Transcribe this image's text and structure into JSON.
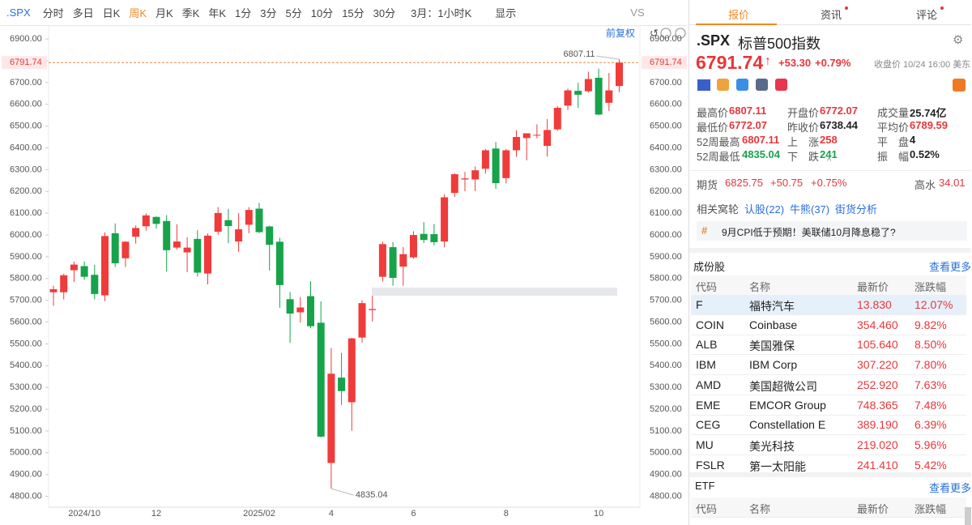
{
  "toolbar": {
    "symbol": ".SPX",
    "periods": [
      "分时",
      "多日",
      "日K",
      "周K",
      "月K",
      "季K",
      "年K",
      "1分",
      "3分",
      "5分",
      "10分",
      "15分",
      "30分"
    ],
    "active_period": 3,
    "range": "3月：1小时K",
    "display": "显示",
    "vs": "VS"
  },
  "chart_data": {
    "type": "candlestick",
    "adjust_label": "前复权",
    "up_color": "#f03b3b",
    "down_color": "#17a34a",
    "last_color": "#f0883b",
    "categories": [
      null,
      null,
      null,
      "2024/10",
      null,
      null,
      null,
      null,
      null,
      null,
      "12",
      null,
      null,
      null,
      null,
      null,
      null,
      null,
      null,
      null,
      "2025/02",
      null,
      null,
      null,
      null,
      null,
      null,
      "4",
      null,
      null,
      null,
      null,
      null,
      null,
      null,
      "6",
      null,
      null,
      null,
      null,
      null,
      null,
      null,
      null,
      "8",
      null,
      null,
      null,
      null,
      null,
      null,
      null,
      null,
      "10",
      null,
      null
    ],
    "open": [
      5737,
      5737,
      5838,
      5857,
      5817,
      5723,
      6008,
      5893,
      5992,
      6040,
      6083,
      6064,
      5942,
      5920,
      5982,
      5823,
      6015,
      6068,
      5970,
      6047,
      6121,
      6039,
      5969,
      5705,
      5645,
      5719,
      5597,
      4953,
      5345,
      5232,
      5529,
      5655,
      5808,
      5944,
      5855,
      5897,
      6005,
      6004,
      5970,
      6193,
      6255,
      6255,
      6304,
      6397,
      6261,
      6389,
      6445,
      6457,
      6409,
      6485,
      6594,
      6662,
      6660,
      6722,
      6607,
      6684
    ],
    "high": [
      5767,
      5822,
      5878,
      5878,
      5863,
      6012,
      6053,
      5972,
      6044,
      6099,
      6085,
      6091,
      6049,
      5990,
      6022,
      6007,
      6128,
      6120,
      6101,
      6128,
      6147,
      6043,
      5987,
      5738,
      5715,
      5787,
      5695,
      5481,
      5459,
      5528,
      5700,
      5721,
      5969,
      5968,
      5944,
      6017,
      6059,
      6050,
      6187,
      6284,
      6290,
      6315,
      6395,
      6427,
      6395,
      6481,
      6467,
      6508,
      6532,
      6592,
      6672,
      6699,
      6750,
      6764,
      6744,
      6807.11
    ],
    "low": [
      5675,
      5704,
      5784,
      5794,
      5704,
      5696,
      5853,
      5853,
      5960,
      6020,
      6029,
      5832,
      5932,
      5829,
      5809,
      5773,
      6001,
      5962,
      5923,
      6008,
      6009,
      5837,
      5666,
      5505,
      5598,
      5572,
      5070,
      4835.04,
      5220,
      5101,
      5506,
      5603,
      5786,
      5767,
      5767,
      5891,
      5963,
      5952,
      5943,
      6174,
      6201,
      6201,
      6282,
      6212,
      6237,
      6359,
      6343,
      6444,
      6360,
      6478,
      6574,
      6584,
      6654,
      6550,
      6570,
      6656
    ],
    "close": [
      5751,
      5815,
      5864,
      5808,
      5729,
      5995,
      5870,
      5969,
      6032,
      6090,
      6051,
      5930,
      5970,
      5942,
      5827,
      5997,
      6101,
      6041,
      6026,
      6115,
      6013,
      5955,
      5770,
      5639,
      5667,
      5581,
      5074,
      5363,
      5283,
      5525,
      5687,
      5660,
      5958,
      5803,
      5912,
      6000,
      5977,
      5967,
      6173,
      6279,
      6260,
      6297,
      6389,
      6238,
      6389,
      6450,
      6467,
      6460,
      6482,
      6584,
      6664,
      6644,
      6716,
      6553,
      6664,
      6791.74
    ],
    "ylim": [
      4750,
      6960
    ],
    "yticks": [
      {
        "value": 4800,
        "label": "4800.00"
      },
      {
        "value": 4900,
        "label": "4900.00"
      },
      {
        "value": 5000,
        "label": "5000.00"
      },
      {
        "value": 5100,
        "label": "5100.00"
      },
      {
        "value": 5200,
        "label": "5200.00"
      },
      {
        "value": 5300,
        "label": "5300.00"
      },
      {
        "value": 5400,
        "label": "5400.00"
      },
      {
        "value": 5500,
        "label": "5500.00"
      },
      {
        "value": 5600,
        "label": "5600.00"
      },
      {
        "value": 5700,
        "label": "5700.00"
      },
      {
        "value": 5800,
        "label": "5800.00"
      },
      {
        "value": 5900,
        "label": "5900.00"
      },
      {
        "value": 6000,
        "label": "6000.00"
      },
      {
        "value": 6100,
        "label": "6100.00"
      },
      {
        "value": 6200,
        "label": "6200.00"
      },
      {
        "value": 6300,
        "label": "6300.00"
      },
      {
        "value": 6400,
        "label": "6400.00"
      },
      {
        "value": 6500,
        "label": "6500.00"
      },
      {
        "value": 6600,
        "label": "6600.00"
      },
      {
        "value": 6700,
        "label": "6700.00"
      },
      {
        "value": 6800,
        "label": "6800.00"
      },
      {
        "value": 6900,
        "label": "6900.00"
      }
    ]
  },
  "quote": {
    "tabs": [
      "报价",
      "资讯",
      "评论"
    ],
    "symbol": ".SPX",
    "name": "标普500指数",
    "price": "6791.74",
    "arrow": "↑",
    "change": "+53.30",
    "change_pct": "+0.79%",
    "status": "收盘价 10/24 16:00 美东",
    "stats": [
      [
        {
          "label": "最高价",
          "value": "6807.11",
          "tone": "up"
        },
        {
          "label": "开盘价",
          "value": "6772.07",
          "tone": "up"
        },
        {
          "label": "成交量",
          "value": "25.74亿",
          "tone": "flat"
        }
      ],
      [
        {
          "label": "最低价",
          "value": "6772.07",
          "tone": "up"
        },
        {
          "label": "昨收价",
          "value": "6738.44",
          "tone": "flat"
        },
        {
          "label": "平均价",
          "value": "6789.59",
          "tone": "up"
        }
      ],
      [
        {
          "label": "52周最高",
          "value": "6807.11",
          "tone": "up"
        },
        {
          "label": "上　涨",
          "value": "258",
          "tone": "up"
        },
        {
          "label": "平　盘",
          "value": "4",
          "tone": "flat"
        }
      ],
      [
        {
          "label": "52周最低",
          "value": "4835.04",
          "tone": "down"
        },
        {
          "label": "下　跌",
          "value": "241",
          "tone": "down"
        },
        {
          "label": "振　幅",
          "value": "0.52%",
          "tone": "flat"
        }
      ]
    ],
    "futures": {
      "label": "期货",
      "price": "6825.75",
      "change": "+50.75",
      "pct": "+0.75%",
      "premium_label": "高水",
      "premium": "34.01"
    },
    "warrants": {
      "label": "相关窝轮",
      "links": [
        "认股(22)",
        "牛熊(37)",
        "街货分析"
      ]
    },
    "news": "9月CPI低于预期！美联储10月降息稳了?",
    "components": {
      "title": "成份股",
      "more": "查看更多",
      "header": [
        "代码",
        "名称",
        "最新价",
        "涨跌幅"
      ],
      "rows": [
        [
          "F",
          "福特汽车",
          "13.830",
          "12.07%"
        ],
        [
          "COIN",
          "Coinbase",
          "354.460",
          "9.82%"
        ],
        [
          "ALB",
          "美国雅保",
          "105.640",
          "8.50%"
        ],
        [
          "IBM",
          "IBM Corp",
          "307.220",
          "7.80%"
        ],
        [
          "AMD",
          "美国超微公司",
          "252.920",
          "7.63%"
        ],
        [
          "EME",
          "EMCOR Group",
          "748.365",
          "7.48%"
        ],
        [
          "CEG",
          "Constellation E",
          "389.190",
          "6.39%"
        ],
        [
          "MU",
          "美光科技",
          "219.020",
          "5.96%"
        ],
        [
          "FSLR",
          "第一太阳能",
          "241.410",
          "5.42%"
        ]
      ]
    },
    "etf": {
      "title": "ETF",
      "more": "查看更多",
      "header": [
        "代码",
        "名称",
        "最新价",
        "涨跌幅"
      ]
    }
  }
}
